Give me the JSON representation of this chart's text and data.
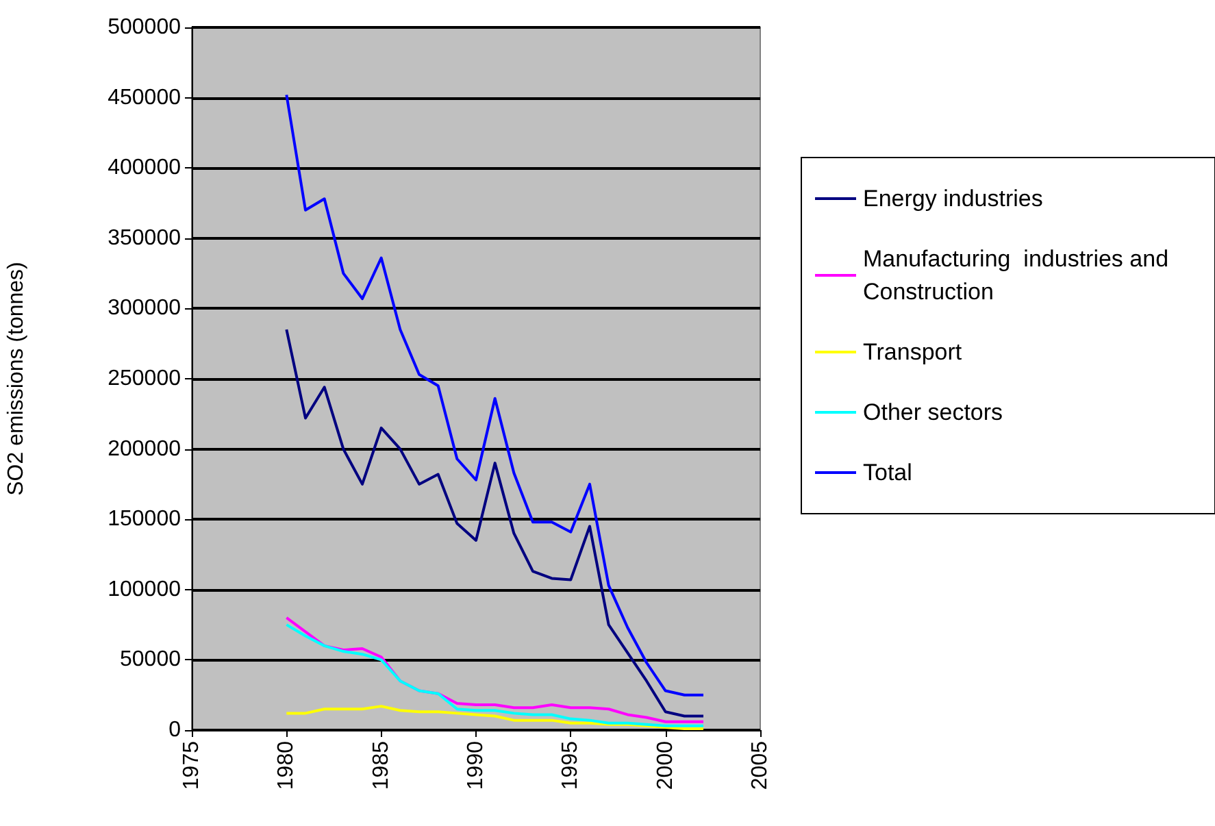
{
  "chart_data": {
    "type": "line",
    "ylabel": "SO2 emissions (tonnes)",
    "x": [
      1980,
      1981,
      1982,
      1983,
      1984,
      1985,
      1986,
      1987,
      1988,
      1989,
      1990,
      1991,
      1992,
      1993,
      1994,
      1995,
      1996,
      1997,
      1998,
      1999,
      2000,
      2001,
      2002
    ],
    "series": [
      {
        "name": "Energy industries",
        "color": "#000080",
        "values": [
          285000,
          222000,
          244000,
          200000,
          175000,
          215000,
          200000,
          175000,
          182000,
          147000,
          135000,
          190000,
          140000,
          113000,
          108000,
          107000,
          145000,
          75000,
          55000,
          35000,
          13000,
          10000,
          10000
        ]
      },
      {
        "name": "Manufacturing  industries and Construction",
        "color": "#ff00ff",
        "values": [
          80000,
          70000,
          60000,
          57000,
          58000,
          52000,
          35000,
          28000,
          26000,
          19000,
          18000,
          18000,
          16000,
          16000,
          18000,
          16000,
          16000,
          15000,
          11000,
          9000,
          6000,
          6000,
          6000
        ]
      },
      {
        "name": "Transport",
        "color": "#ffff00",
        "values": [
          12000,
          12000,
          15000,
          15000,
          15000,
          17000,
          14000,
          13000,
          13000,
          12000,
          11000,
          10000,
          7000,
          7000,
          7000,
          5000,
          5000,
          4000,
          4000,
          3000,
          2000,
          1000,
          1000
        ]
      },
      {
        "name": "Other sectors",
        "color": "#00ffff",
        "values": [
          75000,
          67000,
          60000,
          56000,
          54000,
          50000,
          35000,
          28000,
          26000,
          15000,
          14000,
          14000,
          12000,
          11000,
          11000,
          8000,
          7000,
          5000,
          5000,
          4000,
          3000,
          3000,
          3000
        ]
      },
      {
        "name": "Total",
        "color": "#0000ff",
        "values": [
          452000,
          370000,
          378000,
          325000,
          307000,
          336000,
          285000,
          253000,
          245000,
          193000,
          178000,
          236000,
          183000,
          148000,
          148000,
          141000,
          175000,
          103000,
          73000,
          48000,
          28000,
          25000,
          25000
        ]
      }
    ],
    "xlim": [
      1975,
      2005
    ],
    "xticks": [
      1975,
      1980,
      1985,
      1990,
      1995,
      2000,
      2005
    ],
    "ylim": [
      0,
      500000
    ],
    "yticks": [
      0,
      50000,
      100000,
      150000,
      200000,
      250000,
      300000,
      350000,
      400000,
      450000,
      500000
    ],
    "grid": "y",
    "legend": "right",
    "marker": "none",
    "line_style": "solid"
  }
}
